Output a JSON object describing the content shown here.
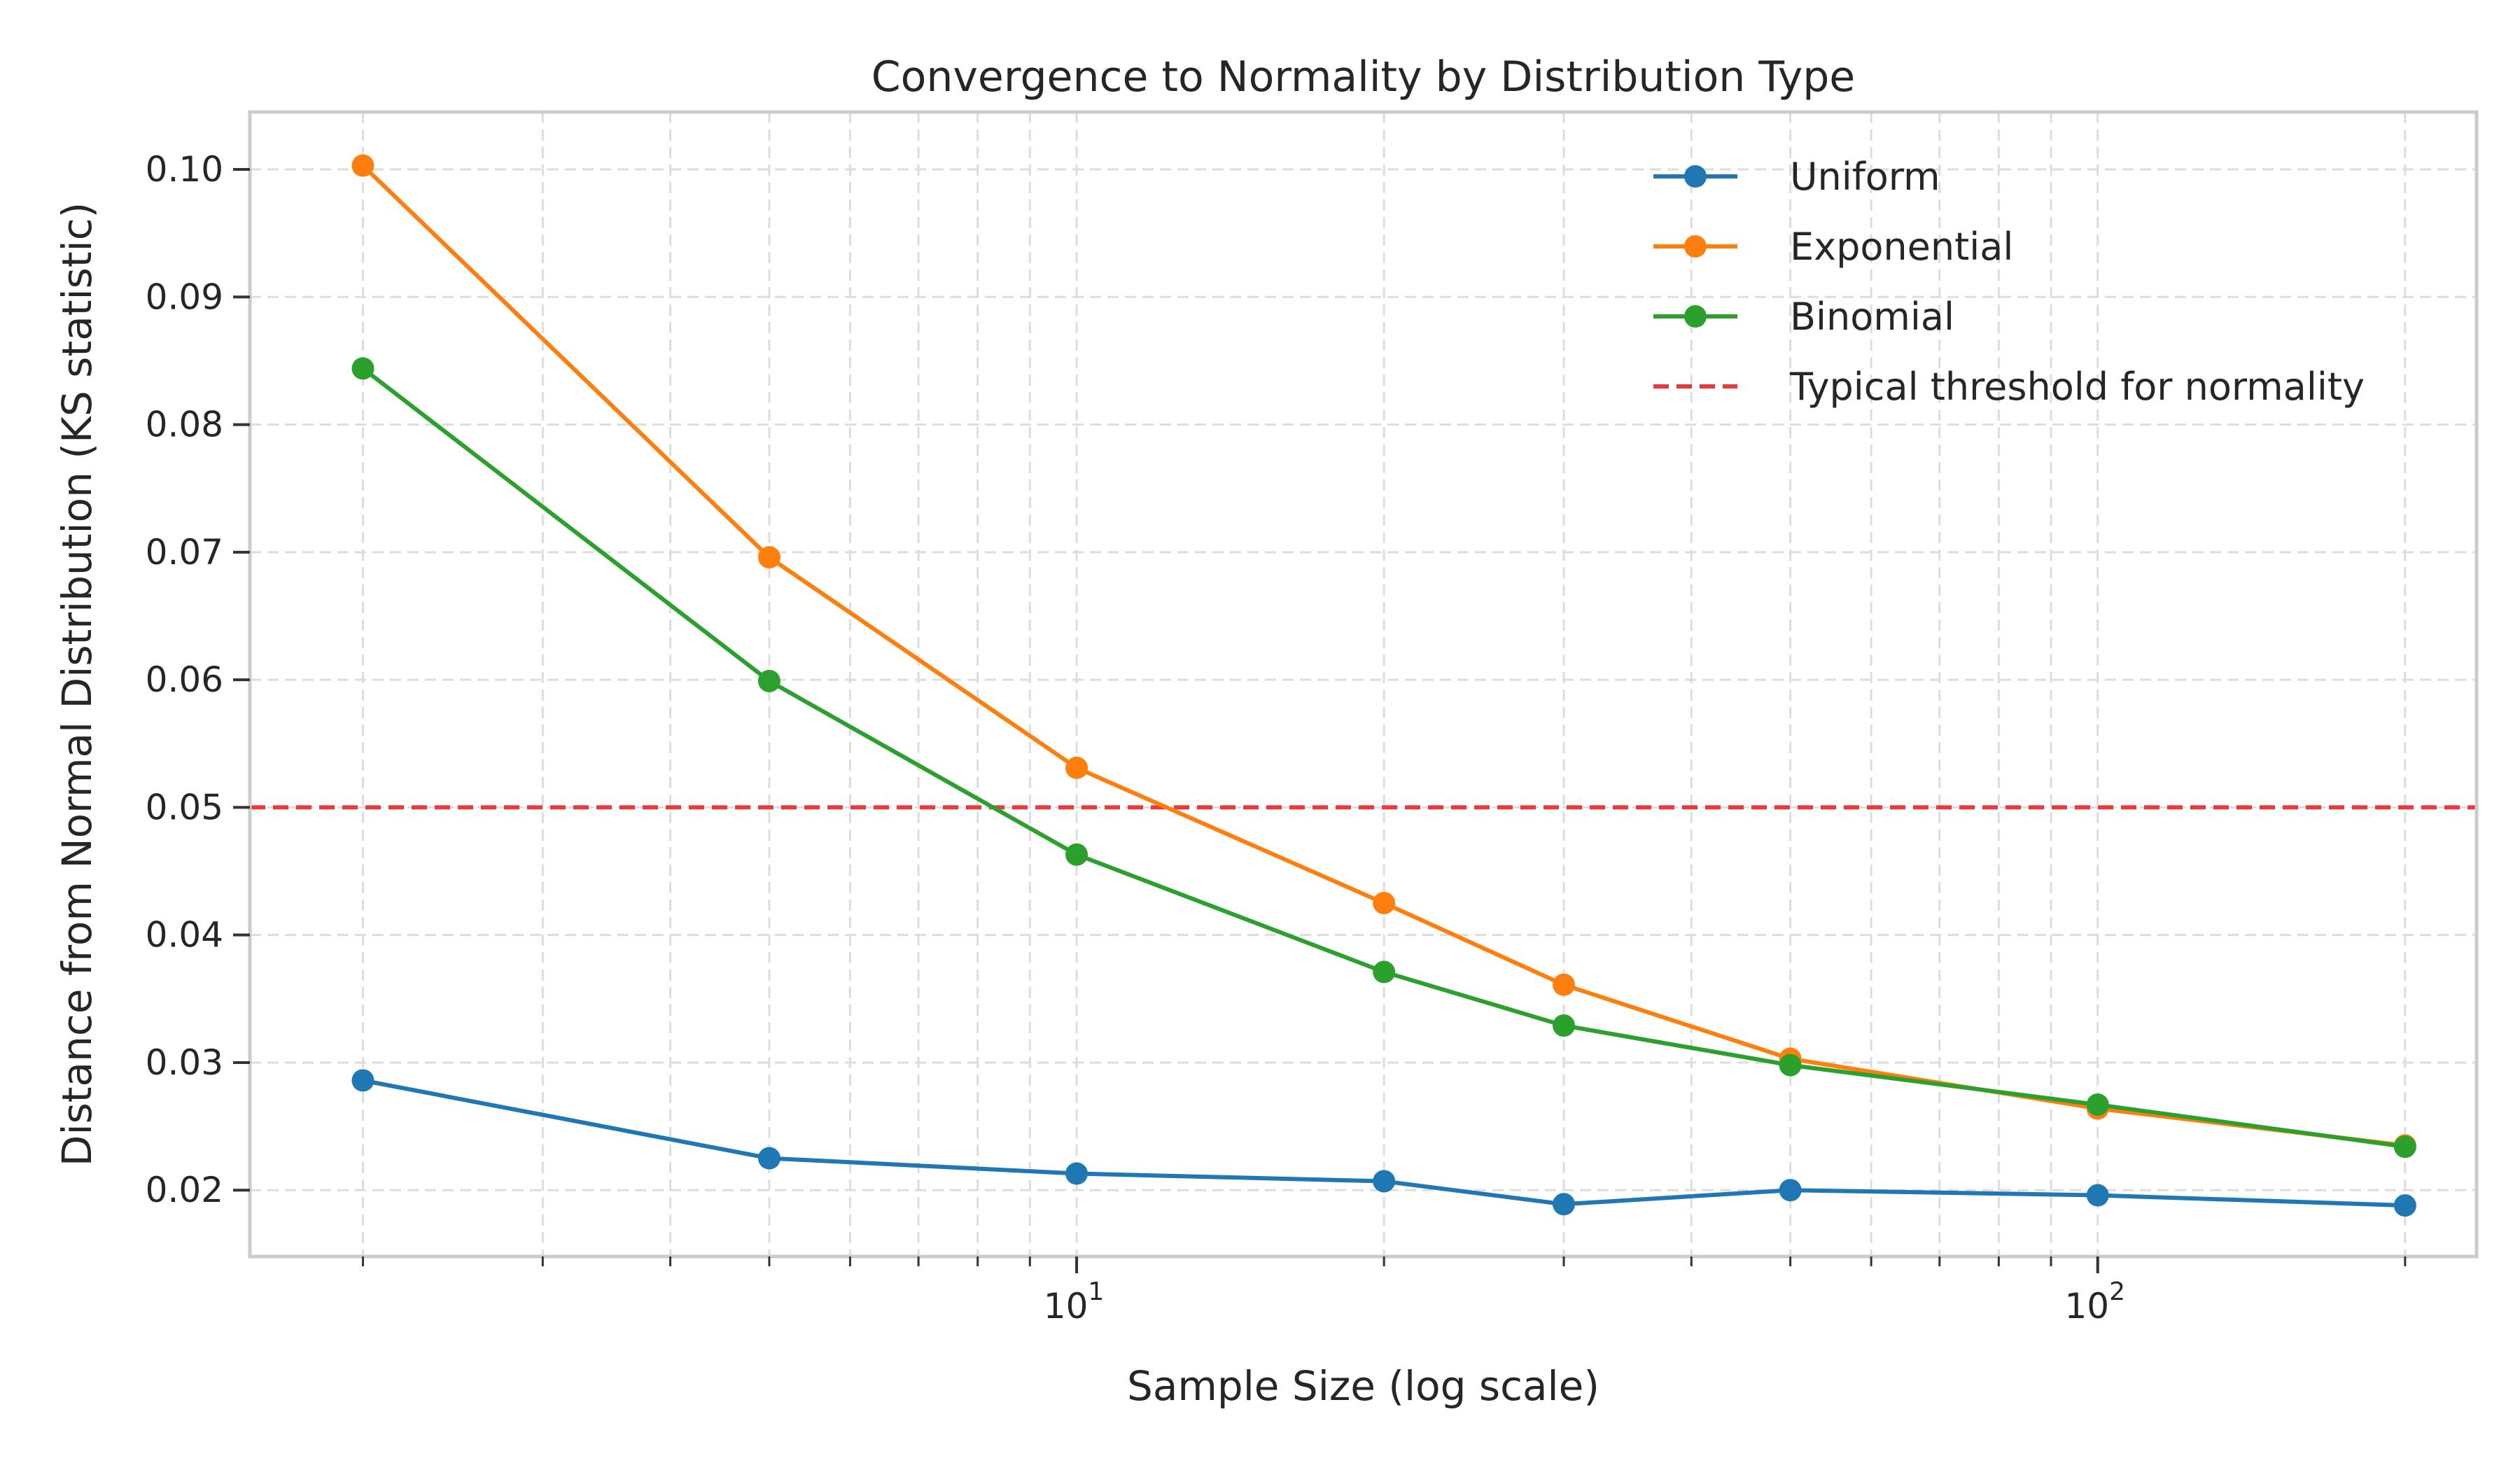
{
  "chart_data": {
    "type": "line",
    "title": "Convergence to Normality by Distribution Type",
    "xlabel": "Sample Size (log scale)",
    "ylabel": "Distance from Normal Distribution (KS statistic)",
    "x_scale": "log",
    "xlim": [
      1.55,
      235
    ],
    "ylim": [
      0.0148,
      0.1045
    ],
    "x": [
      2,
      5,
      10,
      20,
      30,
      50,
      100,
      200
    ],
    "x_ticks": [
      {
        "value": 10,
        "base": "10",
        "exp": "1"
      },
      {
        "value": 100,
        "base": "10",
        "exp": "2"
      }
    ],
    "y_ticks": [
      {
        "value": 0.02,
        "label": "0.02"
      },
      {
        "value": 0.03,
        "label": "0.03"
      },
      {
        "value": 0.04,
        "label": "0.04"
      },
      {
        "value": 0.05,
        "label": "0.05"
      },
      {
        "value": 0.06,
        "label": "0.06"
      },
      {
        "value": 0.07,
        "label": "0.07"
      },
      {
        "value": 0.08,
        "label": "0.08"
      },
      {
        "value": 0.09,
        "label": "0.09"
      },
      {
        "value": 0.1,
        "label": "0.10"
      }
    ],
    "series": [
      {
        "name": "Uniform",
        "color": "#1f77b4",
        "values": [
          0.0286,
          0.0225,
          0.0213,
          0.0207,
          0.0189,
          0.02,
          0.0196,
          0.0188
        ]
      },
      {
        "name": "Exponential",
        "color": "#ff7f0e",
        "values": [
          0.1003,
          0.0696,
          0.0531,
          0.0425,
          0.0361,
          0.0303,
          0.0264,
          0.0235
        ]
      },
      {
        "name": "Binomial",
        "color": "#2ca02c",
        "values": [
          0.0844,
          0.0599,
          0.0463,
          0.0371,
          0.0329,
          0.0298,
          0.0267,
          0.0234
        ]
      }
    ],
    "threshold": {
      "name": "Typical threshold for normality",
      "value": 0.05,
      "color": "#e83a3a",
      "style": "dashed"
    },
    "grid": true,
    "legend_position": "top-right"
  }
}
